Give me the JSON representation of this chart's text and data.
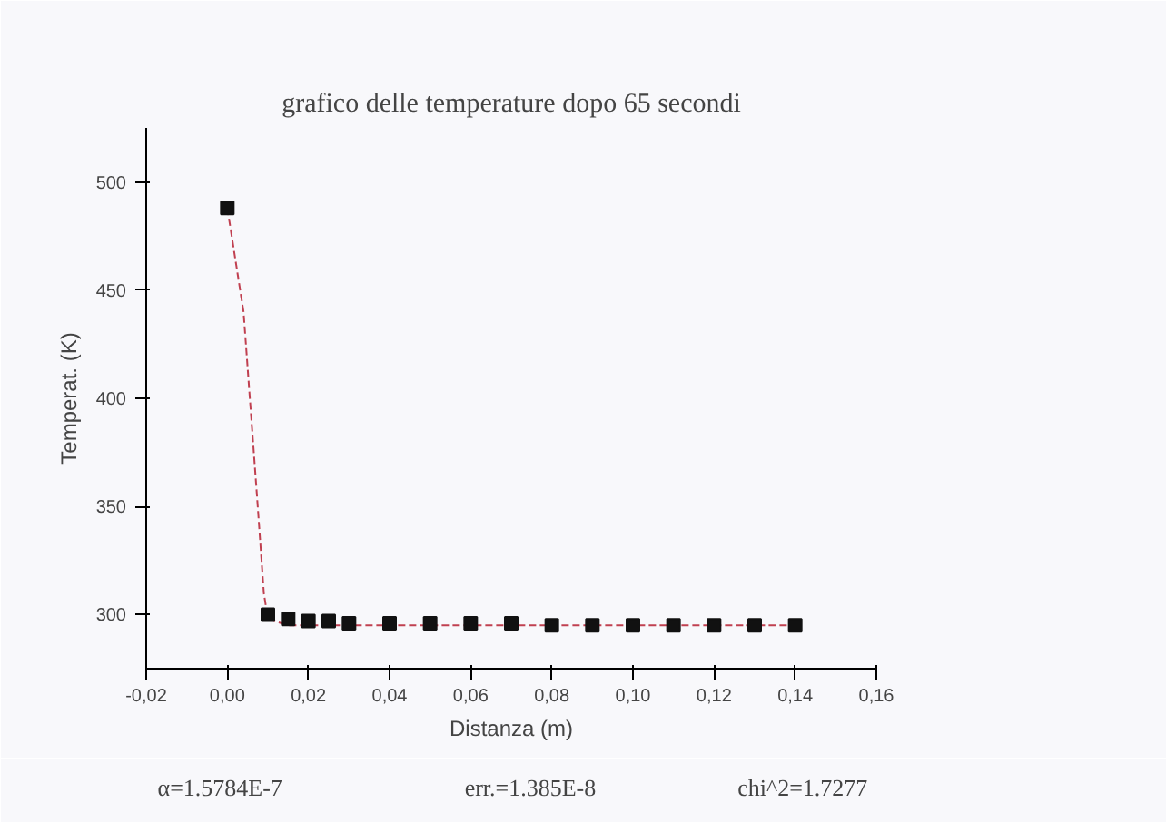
{
  "chart_data": {
    "type": "scatter",
    "title": "grafico delle temperature dopo 65 secondi",
    "xlabel": "Distanza (m)",
    "ylabel": "Temperat. (K)",
    "xlim": [
      -0.02,
      0.16
    ],
    "ylim": [
      275,
      525
    ],
    "xticks": [
      {
        "value": -0.02,
        "label": "-0,02"
      },
      {
        "value": 0,
        "label": "0,00"
      },
      {
        "value": 0.02,
        "label": "0,02"
      },
      {
        "value": 0.04,
        "label": "0,04"
      },
      {
        "value": 0.06,
        "label": "0,06"
      },
      {
        "value": 0.08,
        "label": "0,08"
      },
      {
        "value": 0.1,
        "label": "0,10"
      },
      {
        "value": 0.12,
        "label": "0,12"
      },
      {
        "value": 0.14,
        "label": "0,14"
      },
      {
        "value": 0.16,
        "label": "0,16"
      }
    ],
    "yticks": [
      300,
      350,
      400,
      450,
      500
    ],
    "grid": false,
    "series": [
      {
        "marker": "square",
        "color": "#111111",
        "x": [
          0,
          0.01,
          0.015,
          0.02,
          0.025,
          0.03,
          0.04,
          0.05,
          0.06,
          0.07,
          0.08,
          0.09,
          0.1,
          0.11,
          0.12,
          0.13,
          0.14
        ],
        "values": [
          488,
          300,
          298,
          297,
          297,
          296,
          296,
          296,
          296,
          296,
          295,
          295,
          295,
          295,
          295,
          295,
          295
        ]
      },
      {
        "type": "line",
        "color": "#c04050",
        "line_style": "dashed",
        "x": [
          0,
          0.004,
          0.0075,
          0.009,
          0.01,
          0.015,
          0.14
        ],
        "values": [
          488,
          440,
          350,
          310,
          298,
          295,
          295
        ]
      }
    ],
    "annotations": [
      "α=1.5784E-7",
      "err.=1.385E-8",
      "chi^2=1.7277"
    ]
  }
}
